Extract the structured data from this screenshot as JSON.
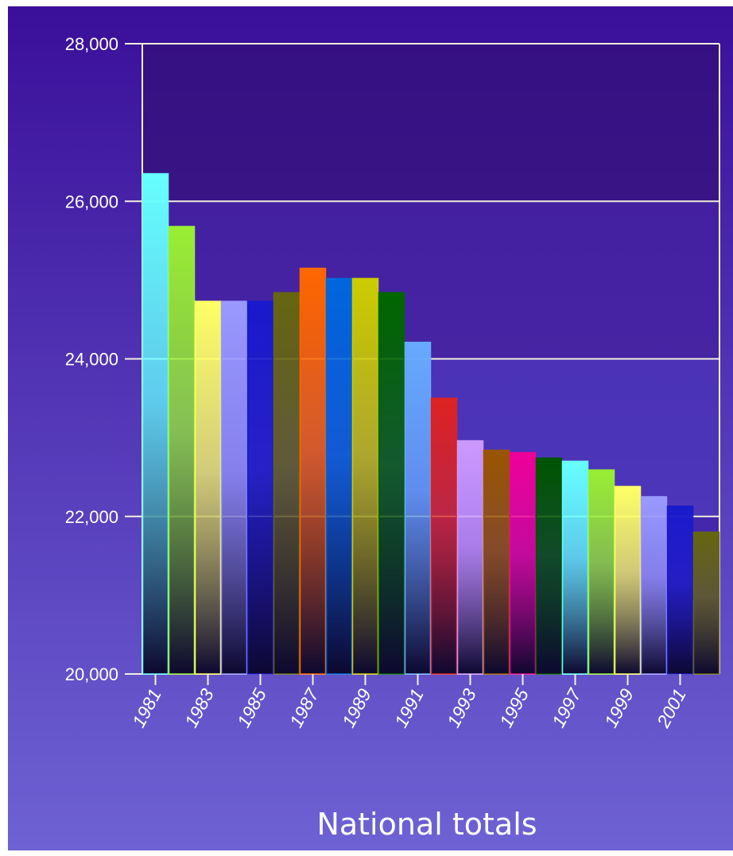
{
  "chart_data": {
    "type": "bar",
    "title": "",
    "xlabel": "National totals",
    "ylabel": "",
    "ylim": [
      20000,
      28000
    ],
    "yticks": [
      20000,
      22000,
      24000,
      26000,
      28000
    ],
    "ytick_labels": [
      "20,000",
      "22,000",
      "24,000",
      "26,000",
      "28,000"
    ],
    "xtick_labels": [
      "1981",
      "1983",
      "1985",
      "1987",
      "1989",
      "1991",
      "1993",
      "1995",
      "1997",
      "1999",
      "2001"
    ],
    "grid": true,
    "legend": "none",
    "categories": [
      "1981",
      "1982",
      "1983",
      "1984",
      "1985",
      "1986",
      "1987",
      "1988",
      "1989",
      "1990",
      "1991",
      "1992",
      "1993",
      "1994",
      "1995",
      "1996",
      "1997",
      "1998",
      "1999",
      "2000",
      "2001",
      "2002"
    ],
    "values": [
      26350,
      25680,
      24730,
      24730,
      24730,
      24840,
      25150,
      25020,
      25020,
      24840,
      24210,
      23500,
      22960,
      22840,
      22810,
      22740,
      22700,
      22590,
      22380,
      22250,
      22130,
      21800
    ],
    "colors": [
      "#66ffff",
      "#99ee33",
      "#ffff66",
      "#9999ff",
      "#1a1acc",
      "#666611",
      "#ff6600",
      "#0066dd",
      "#cccc00",
      "#006600",
      "#66aaff",
      "#dd2222",
      "#cc99ff",
      "#995500",
      "#ee0099",
      "#005500",
      "#66ffff",
      "#99ee33",
      "#ffff66",
      "#9999ff",
      "#1a1acc",
      "#666611"
    ]
  }
}
